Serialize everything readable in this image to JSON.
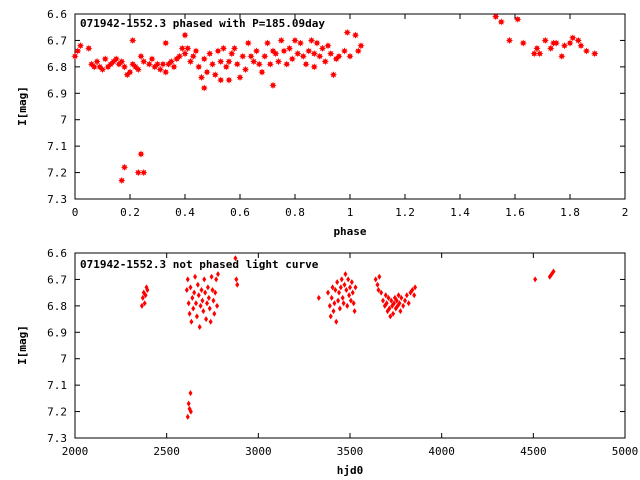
{
  "chart_data": [
    {
      "type": "scatter",
      "title": "071942-1552.3 phased with P=185.09day",
      "xlabel": "phase",
      "ylabel": "I[mag]",
      "xlim": [
        0,
        2
      ],
      "ylim": [
        6.6,
        7.3
      ],
      "y_inverted": true,
      "xticks": [
        "0",
        "0.2",
        "0.4",
        "0.6",
        "0.8",
        "1",
        "1.2",
        "1.4",
        "1.6",
        "1.8",
        "2"
      ],
      "yticks": [
        "6.6",
        "6.7",
        "6.8",
        "6.9",
        "7",
        "7.1",
        "7.2",
        "7.3"
      ],
      "marker_color": "#ff0000",
      "marker": "star",
      "points": [
        [
          0.0,
          6.76
        ],
        [
          0.01,
          6.74
        ],
        [
          0.02,
          6.72
        ],
        [
          0.05,
          6.73
        ],
        [
          0.06,
          6.79
        ],
        [
          0.07,
          6.8
        ],
        [
          0.08,
          6.78
        ],
        [
          0.09,
          6.8
        ],
        [
          0.1,
          6.81
        ],
        [
          0.11,
          6.77
        ],
        [
          0.12,
          6.8
        ],
        [
          0.13,
          6.79
        ],
        [
          0.14,
          6.78
        ],
        [
          0.15,
          6.77
        ],
        [
          0.16,
          6.79
        ],
        [
          0.17,
          6.78
        ],
        [
          0.18,
          6.8
        ],
        [
          0.19,
          6.83
        ],
        [
          0.2,
          6.82
        ],
        [
          0.21,
          6.79
        ],
        [
          0.21,
          6.7
        ],
        [
          0.22,
          6.8
        ],
        [
          0.23,
          6.81
        ],
        [
          0.24,
          6.76
        ],
        [
          0.25,
          6.78
        ],
        [
          0.27,
          6.79
        ],
        [
          0.28,
          6.77
        ],
        [
          0.29,
          6.8
        ],
        [
          0.3,
          6.79
        ],
        [
          0.31,
          6.81
        ],
        [
          0.32,
          6.79
        ],
        [
          0.33,
          6.82
        ],
        [
          0.33,
          6.71
        ],
        [
          0.34,
          6.79
        ],
        [
          0.35,
          6.78
        ],
        [
          0.36,
          6.8
        ],
        [
          0.37,
          6.77
        ],
        [
          0.38,
          6.76
        ],
        [
          0.39,
          6.73
        ],
        [
          0.4,
          6.75
        ],
        [
          0.4,
          6.68
        ],
        [
          0.41,
          6.73
        ],
        [
          0.42,
          6.78
        ],
        [
          0.43,
          6.76
        ],
        [
          0.44,
          6.74
        ],
        [
          0.45,
          6.8
        ],
        [
          0.46,
          6.84
        ],
        [
          0.47,
          6.88
        ],
        [
          0.47,
          6.77
        ],
        [
          0.48,
          6.82
        ],
        [
          0.49,
          6.75
        ],
        [
          0.5,
          6.79
        ],
        [
          0.51,
          6.83
        ],
        [
          0.52,
          6.74
        ],
        [
          0.53,
          6.78
        ],
        [
          0.53,
          6.85
        ],
        [
          0.54,
          6.73
        ],
        [
          0.55,
          6.8
        ],
        [
          0.56,
          6.85
        ],
        [
          0.56,
          6.78
        ],
        [
          0.57,
          6.75
        ],
        [
          0.58,
          6.73
        ],
        [
          0.59,
          6.79
        ],
        [
          0.6,
          6.84
        ],
        [
          0.61,
          6.76
        ],
        [
          0.62,
          6.81
        ],
        [
          0.63,
          6.71
        ],
        [
          0.64,
          6.76
        ],
        [
          0.65,
          6.78
        ],
        [
          0.66,
          6.74
        ],
        [
          0.67,
          6.79
        ],
        [
          0.68,
          6.82
        ],
        [
          0.69,
          6.76
        ],
        [
          0.7,
          6.71
        ],
        [
          0.71,
          6.79
        ],
        [
          0.72,
          6.87
        ],
        [
          0.72,
          6.74
        ],
        [
          0.73,
          6.75
        ],
        [
          0.74,
          6.78
        ],
        [
          0.75,
          6.7
        ],
        [
          0.76,
          6.74
        ],
        [
          0.77,
          6.79
        ],
        [
          0.78,
          6.73
        ],
        [
          0.79,
          6.77
        ],
        [
          0.8,
          6.7
        ],
        [
          0.81,
          6.75
        ],
        [
          0.82,
          6.71
        ],
        [
          0.83,
          6.76
        ],
        [
          0.84,
          6.79
        ],
        [
          0.85,
          6.74
        ],
        [
          0.86,
          6.7
        ],
        [
          0.87,
          6.75
        ],
        [
          0.87,
          6.8
        ],
        [
          0.88,
          6.71
        ],
        [
          0.89,
          6.76
        ],
        [
          0.9,
          6.73
        ],
        [
          0.91,
          6.78
        ],
        [
          0.92,
          6.72
        ],
        [
          0.93,
          6.75
        ],
        [
          0.94,
          6.83
        ],
        [
          0.95,
          6.77
        ],
        [
          0.96,
          6.76
        ],
        [
          0.98,
          6.74
        ],
        [
          0.99,
          6.67
        ],
        [
          1.0,
          6.76
        ],
        [
          1.02,
          6.68
        ],
        [
          1.03,
          6.74
        ],
        [
          1.04,
          6.72
        ],
        [
          1.53,
          6.61
        ],
        [
          1.55,
          6.63
        ],
        [
          1.58,
          6.7
        ],
        [
          1.61,
          6.62
        ],
        [
          1.63,
          6.71
        ],
        [
          1.67,
          6.75
        ],
        [
          1.68,
          6.73
        ],
        [
          1.69,
          6.75
        ],
        [
          1.71,
          6.7
        ],
        [
          1.73,
          6.73
        ],
        [
          1.74,
          6.71
        ],
        [
          1.75,
          6.71
        ],
        [
          1.77,
          6.76
        ],
        [
          1.78,
          6.72
        ],
        [
          1.8,
          6.71
        ],
        [
          1.81,
          6.69
        ],
        [
          1.83,
          6.7
        ],
        [
          1.84,
          6.72
        ],
        [
          1.86,
          6.74
        ],
        [
          1.89,
          6.75
        ],
        [
          0.17,
          7.23
        ],
        [
          0.18,
          7.18
        ],
        [
          0.23,
          7.2
        ],
        [
          0.24,
          7.13
        ],
        [
          0.25,
          7.2
        ]
      ]
    },
    {
      "type": "scatter",
      "title": "071942-1552.3 not phased light curve",
      "xlabel": "hjd0",
      "ylabel": "I[mag]",
      "xlim": [
        2000,
        5000
      ],
      "ylim": [
        6.6,
        7.3
      ],
      "y_inverted": true,
      "xticks": [
        "2000",
        "2500",
        "3000",
        "3500",
        "4000",
        "4500",
        "5000"
      ],
      "yticks": [
        "6.6",
        "6.7",
        "6.8",
        "6.9",
        "7",
        "7.1",
        "7.2",
        "7.3"
      ],
      "marker_color": "#ff0000",
      "marker": "diamond",
      "points": [
        [
          2365,
          6.8
        ],
        [
          2370,
          6.77
        ],
        [
          2375,
          6.75
        ],
        [
          2380,
          6.79
        ],
        [
          2385,
          6.76
        ],
        [
          2390,
          6.73
        ],
        [
          2395,
          6.74
        ],
        [
          2615,
          7.22
        ],
        [
          2620,
          7.17
        ],
        [
          2625,
          7.19
        ],
        [
          2630,
          7.13
        ],
        [
          2632,
          7.2
        ],
        [
          2610,
          6.74
        ],
        [
          2615,
          6.7
        ],
        [
          2620,
          6.79
        ],
        [
          2625,
          6.83
        ],
        [
          2630,
          6.73
        ],
        [
          2635,
          6.86
        ],
        [
          2640,
          6.77
        ],
        [
          2645,
          6.81
        ],
        [
          2650,
          6.75
        ],
        [
          2655,
          6.69
        ],
        [
          2660,
          6.79
        ],
        [
          2665,
          6.84
        ],
        [
          2670,
          6.72
        ],
        [
          2675,
          6.76
        ],
        [
          2680,
          6.88
        ],
        [
          2685,
          6.8
        ],
        [
          2690,
          6.74
        ],
        [
          2695,
          6.78
        ],
        [
          2700,
          6.82
        ],
        [
          2705,
          6.7
        ],
        [
          2710,
          6.75
        ],
        [
          2715,
          6.85
        ],
        [
          2720,
          6.79
        ],
        [
          2725,
          6.73
        ],
        [
          2730,
          6.77
        ],
        [
          2735,
          6.81
        ],
        [
          2740,
          6.86
        ],
        [
          2745,
          6.69
        ],
        [
          2750,
          6.74
        ],
        [
          2755,
          6.78
        ],
        [
          2760,
          6.83
        ],
        [
          2765,
          6.75
        ],
        [
          2770,
          6.7
        ],
        [
          2775,
          6.8
        ],
        [
          2780,
          6.68
        ],
        [
          2875,
          6.62
        ],
        [
          2880,
          6.7
        ],
        [
          2885,
          6.72
        ],
        [
          3330,
          6.77
        ],
        [
          3380,
          6.75
        ],
        [
          3390,
          6.8
        ],
        [
          3395,
          6.84
        ],
        [
          3400,
          6.77
        ],
        [
          3405,
          6.73
        ],
        [
          3410,
          6.82
        ],
        [
          3415,
          6.79
        ],
        [
          3420,
          6.74
        ],
        [
          3425,
          6.86
        ],
        [
          3430,
          6.71
        ],
        [
          3435,
          6.78
        ],
        [
          3440,
          6.75
        ],
        [
          3445,
          6.81
        ],
        [
          3450,
          6.73
        ],
        [
          3455,
          6.7
        ],
        [
          3460,
          6.77
        ],
        [
          3465,
          6.79
        ],
        [
          3470,
          6.72
        ],
        [
          3475,
          6.68
        ],
        [
          3480,
          6.74
        ],
        [
          3485,
          6.8
        ],
        [
          3490,
          6.7
        ],
        [
          3495,
          6.76
        ],
        [
          3500,
          6.73
        ],
        [
          3505,
          6.78
        ],
        [
          3510,
          6.71
        ],
        [
          3515,
          6.75
        ],
        [
          3520,
          6.79
        ],
        [
          3525,
          6.82
        ],
        [
          3530,
          6.73
        ],
        [
          3640,
          6.7
        ],
        [
          3650,
          6.72
        ],
        [
          3655,
          6.74
        ],
        [
          3660,
          6.69
        ],
        [
          3670,
          6.75
        ],
        [
          3680,
          6.78
        ],
        [
          3690,
          6.8
        ],
        [
          3695,
          6.76
        ],
        [
          3700,
          6.79
        ],
        [
          3705,
          6.82
        ],
        [
          3710,
          6.77
        ],
        [
          3715,
          6.81
        ],
        [
          3720,
          6.84
        ],
        [
          3725,
          6.78
        ],
        [
          3730,
          6.8
        ],
        [
          3735,
          6.83
        ],
        [
          3740,
          6.79
        ],
        [
          3745,
          6.77
        ],
        [
          3750,
          6.81
        ],
        [
          3755,
          6.78
        ],
        [
          3760,
          6.8
        ],
        [
          3765,
          6.76
        ],
        [
          3770,
          6.79
        ],
        [
          3775,
          6.82
        ],
        [
          3780,
          6.77
        ],
        [
          3790,
          6.8
        ],
        [
          3800,
          6.78
        ],
        [
          3810,
          6.76
        ],
        [
          3820,
          6.79
        ],
        [
          3830,
          6.75
        ],
        [
          3840,
          6.74
        ],
        [
          3850,
          6.76
        ],
        [
          3855,
          6.73
        ],
        [
          4510,
          6.7
        ],
        [
          4590,
          6.69
        ],
        [
          4600,
          6.68
        ],
        [
          4610,
          6.67
        ]
      ]
    }
  ]
}
